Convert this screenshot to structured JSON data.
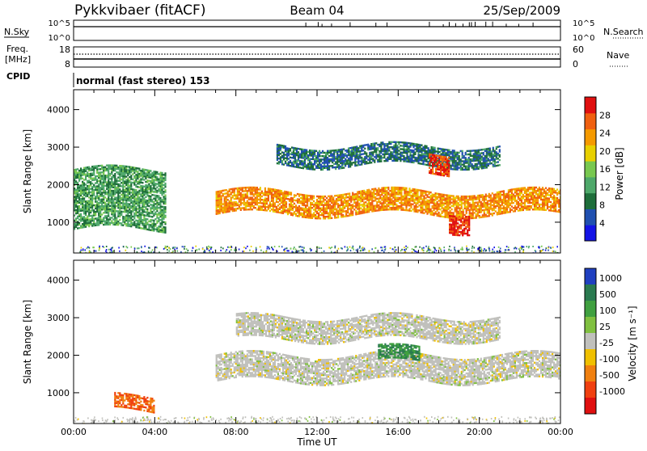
{
  "header": {
    "radar": "Pykkvibaer (fitACF)",
    "beam": "Beam 04",
    "date": "25/Sep/2009"
  },
  "summary_panels": {
    "nsky": {
      "label": "N.Sky",
      "tick_top": "10^5",
      "tick_bottom": "10^0",
      "right_label": "N.Search",
      "right_top": "10^5",
      "right_bottom": "10^0"
    },
    "freq": {
      "label_line1": "Freq.",
      "label_line2": "[MHz]",
      "tick_top": "18",
      "tick_bottom": "8",
      "right_label": "Nave",
      "right_top": "60",
      "right_bottom": "0"
    },
    "cpid": {
      "label": "CPID",
      "text": "normal (fast stereo) 153"
    }
  },
  "chart_data": [
    {
      "name": "power",
      "type": "heatmap",
      "quantity": "Power [dB]",
      "ylabel": "Slant Range [km]",
      "xlabel": "Time UT",
      "xlim": [
        "00:00",
        "24:00"
      ],
      "ylim": [
        180,
        4530
      ],
      "x_ticks": [
        "00:00",
        "04:00",
        "08:00",
        "12:00",
        "16:00",
        "20:00",
        "00:00"
      ],
      "y_ticks": [
        1000,
        2000,
        3000,
        4000
      ],
      "colorbar": {
        "label": "Power [dB]",
        "ticks": [
          4,
          8,
          12,
          16,
          20,
          24,
          28
        ],
        "range": [
          0,
          32
        ],
        "colors": [
          "#1414e6",
          "#2050b0",
          "#1e6e3a",
          "#4ea86a",
          "#78c850",
          "#e8d000",
          "#f59a00",
          "#f06010",
          "#e01010"
        ]
      },
      "features": [
        {
          "label": "main echo band",
          "time_start_h": 7.0,
          "time_end_h": 24.0,
          "range_km": [
            1200,
            1800
          ],
          "power_db": 24
        },
        {
          "label": "upper band",
          "time_start_h": 10.0,
          "time_end_h": 21.0,
          "range_km": [
            2500,
            3000
          ],
          "power_db": 8
        },
        {
          "label": "early echoes",
          "time_start_h": 0.0,
          "time_end_h": 4.5,
          "range_km": [
            800,
            2400
          ],
          "power_db": 12
        },
        {
          "label": "strong patch",
          "time_start_h": 18.5,
          "time_end_h": 19.5,
          "range_km": [
            750,
            1250
          ],
          "power_db": 30
        },
        {
          "label": "strong patch high",
          "time_start_h": 17.5,
          "time_end_h": 18.5,
          "range_km": [
            2300,
            2800
          ],
          "power_db": 28
        }
      ]
    },
    {
      "name": "velocity",
      "type": "heatmap",
      "quantity": "Velocity [m s-1]",
      "ylabel": "Slant Range [km]",
      "xlabel": "Time UT",
      "xlim": [
        "00:00",
        "24:00"
      ],
      "ylim": [
        180,
        4530
      ],
      "x_ticks": [
        "00:00",
        "04:00",
        "08:00",
        "12:00",
        "16:00",
        "20:00",
        "00:00"
      ],
      "y_ticks": [
        1000,
        2000,
        3000,
        4000
      ],
      "colorbar": {
        "label": "Velocity [m s⁻¹]",
        "ticks": [
          "1000",
          "500",
          "100",
          "25",
          "-25",
          "-100",
          "-500",
          "-1000"
        ],
        "colors": [
          "#2040c0",
          "#2a7a50",
          "#40a040",
          "#80c040",
          "#c0c0bc",
          "#f0c000",
          "#f08010",
          "#f04010",
          "#e01010"
        ]
      },
      "features": [
        {
          "label": "ground scatter band",
          "time_start_h": 7.0,
          "time_end_h": 24.0,
          "range_km": [
            1300,
            2000
          ],
          "velocity": 0
        },
        {
          "label": "upper ground scatter",
          "time_start_h": 8.0,
          "time_end_h": 21.0,
          "range_km": [
            2400,
            3000
          ],
          "velocity": 0
        },
        {
          "label": "positive patch",
          "time_start_h": 15.0,
          "time_end_h": 17.0,
          "range_km": [
            1800,
            2200
          ],
          "velocity": 300
        },
        {
          "label": "negative early",
          "time_start_h": 2.0,
          "time_end_h": 4.0,
          "range_km": [
            500,
            900
          ],
          "velocity": -300
        }
      ]
    }
  ]
}
